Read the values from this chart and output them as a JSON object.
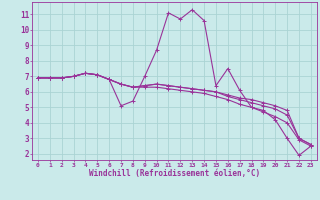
{
  "xlabel": "Windchill (Refroidissement éolien,°C)",
  "background_color": "#caeaea",
  "grid_color": "#aad4d4",
  "line_color": "#993399",
  "x_ticks": [
    0,
    1,
    2,
    3,
    4,
    5,
    6,
    7,
    8,
    9,
    10,
    11,
    12,
    13,
    14,
    15,
    16,
    17,
    18,
    19,
    20,
    21,
    22,
    23
  ],
  "y_ticks": [
    2,
    3,
    4,
    5,
    6,
    7,
    8,
    9,
    10,
    11
  ],
  "ylim": [
    1.6,
    11.8
  ],
  "xlim": [
    -0.5,
    23.5
  ],
  "series": [
    [
      6.9,
      6.9,
      6.9,
      7.0,
      7.2,
      7.1,
      6.8,
      5.1,
      5.4,
      7.0,
      8.7,
      11.1,
      10.7,
      11.3,
      10.6,
      6.4,
      7.5,
      6.1,
      5.0,
      4.8,
      4.2,
      3.0,
      1.9,
      2.5
    ],
    [
      6.9,
      6.9,
      6.9,
      7.0,
      7.2,
      7.1,
      6.8,
      6.5,
      6.3,
      6.4,
      6.5,
      6.4,
      6.3,
      6.2,
      6.1,
      6.0,
      5.8,
      5.6,
      5.5,
      5.3,
      5.1,
      4.8,
      3.0,
      2.6
    ],
    [
      6.9,
      6.9,
      6.9,
      7.0,
      7.2,
      7.1,
      6.8,
      6.5,
      6.3,
      6.4,
      6.5,
      6.4,
      6.3,
      6.2,
      6.1,
      6.0,
      5.7,
      5.5,
      5.3,
      5.1,
      4.9,
      4.5,
      3.0,
      2.6
    ],
    [
      6.9,
      6.9,
      6.9,
      7.0,
      7.2,
      7.1,
      6.8,
      6.5,
      6.3,
      6.3,
      6.3,
      6.2,
      6.1,
      6.0,
      5.9,
      5.7,
      5.5,
      5.2,
      5.0,
      4.7,
      4.4,
      4.0,
      2.9,
      2.5
    ]
  ]
}
